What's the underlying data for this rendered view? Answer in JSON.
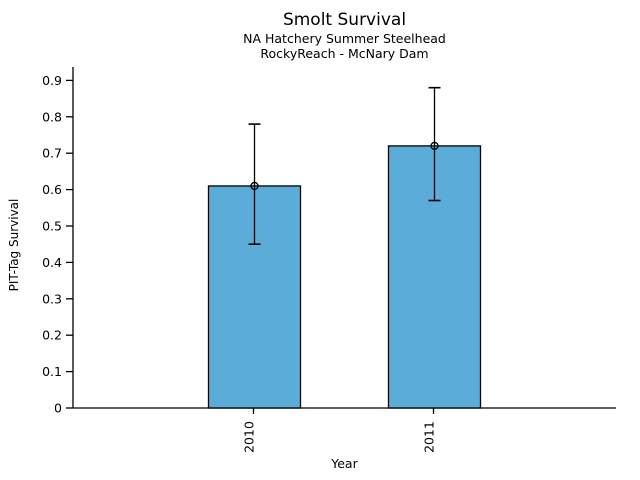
{
  "figure": {
    "title": "Smolt Survival",
    "subtitle_line1": "NA Hatchery Summer Steelhead",
    "subtitle_line2": "RockyReach - McNary Dam"
  },
  "chart_data": {
    "type": "bar",
    "title": "Smolt Survival",
    "subtitle": [
      "NA Hatchery Summer Steelhead",
      "RockyReach - McNary Dam"
    ],
    "xlabel": "Year",
    "ylabel": "PIT-Tag Survival",
    "categories": [
      "2010",
      "2011"
    ],
    "values": [
      0.61,
      0.72
    ],
    "error_low": [
      0.45,
      0.57
    ],
    "error_high": [
      0.78,
      0.88
    ],
    "marker": "open-circle",
    "ytick_labels": [
      "0",
      "0.1",
      "0.2",
      "0.3",
      "0.4",
      "0.5",
      "0.6",
      "0.7",
      "0.8",
      "0.9"
    ],
    "ytick_values": [
      0,
      0.1,
      0.2,
      0.3,
      0.4,
      0.5,
      0.6,
      0.7,
      0.8,
      0.9
    ],
    "ylim": [
      0,
      0.94
    ],
    "grid": false,
    "legend": null,
    "bar_color": "#5BACD8",
    "bar_border_color": "#000000",
    "error_bar_color": "#000000",
    "axis_color": "#000000",
    "text_color": "#000000"
  }
}
